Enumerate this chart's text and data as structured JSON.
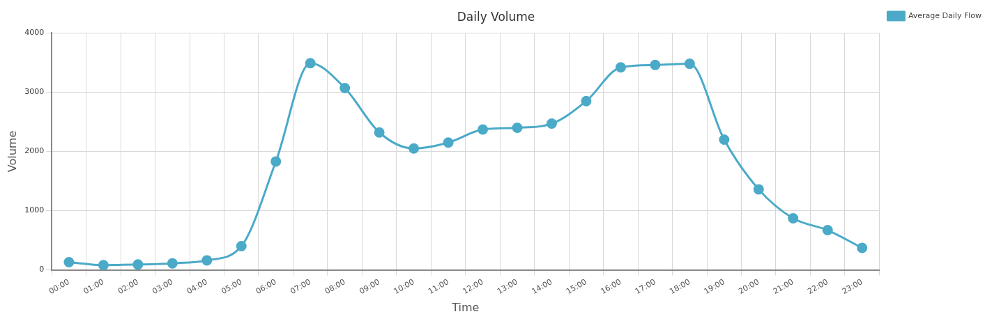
{
  "chart_data": {
    "type": "line",
    "title": "Daily Volume",
    "xlabel": "Time",
    "ylabel": "Volume",
    "categories": [
      "00:00",
      "01:00",
      "02:00",
      "03:00",
      "04:00",
      "05:00",
      "06:00",
      "07:00",
      "08:00",
      "09:00",
      "10:00",
      "11:00",
      "12:00",
      "13:00",
      "14:00",
      "15:00",
      "16:00",
      "17:00",
      "18:00",
      "19:00",
      "20:00",
      "21:00",
      "22:00",
      "23:00"
    ],
    "series": [
      {
        "name": "Average Daily Flow",
        "color": "#4aaac8",
        "values": [
          130,
          80,
          90,
          110,
          160,
          400,
          1830,
          3490,
          3070,
          2320,
          2050,
          2150,
          2370,
          2400,
          2470,
          2850,
          3420,
          3460,
          3480,
          2200,
          1360,
          870,
          670,
          370
        ]
      }
    ],
    "ylim": [
      0,
      4000
    ],
    "yticks": [
      0,
      1000,
      2000,
      3000,
      4000
    ],
    "grid": true,
    "legend": "top right",
    "marker": "circle",
    "line_style": "solid"
  }
}
